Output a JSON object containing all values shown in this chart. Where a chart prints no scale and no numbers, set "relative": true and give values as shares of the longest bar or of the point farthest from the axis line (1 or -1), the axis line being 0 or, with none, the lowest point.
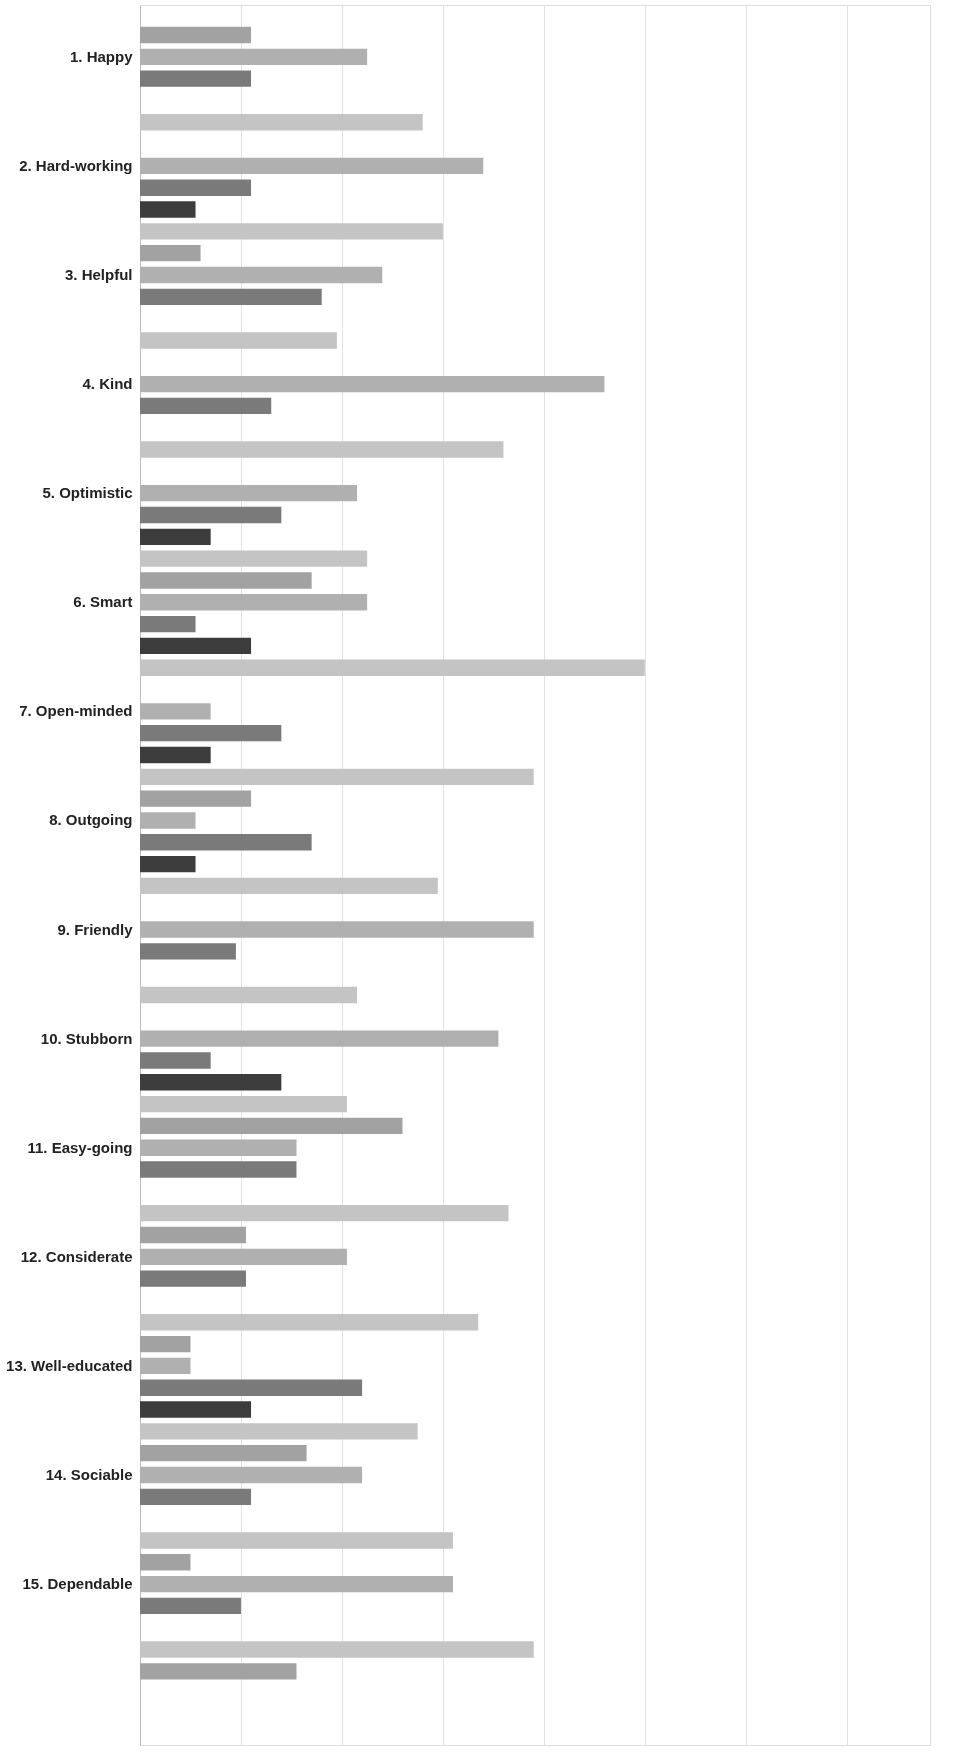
{
  "chart_data": {
    "type": "bar",
    "orientation": "horizontal",
    "relative": true,
    "grid": "x",
    "legend": false,
    "categories": [
      "1. Happy",
      "2. Hard-working",
      "3. Helpful",
      "4. Kind",
      "5. Optimistic",
      "6. Smart",
      "7. Open-minded",
      "8. Outgoing",
      "9. Friendly",
      "10. Stubborn",
      "11. Easy-going",
      "12. Considerate",
      "13. Well-educated",
      "14. Sociable",
      "15. Dependable",
      null
    ],
    "series": [
      {
        "color": "#c4c4c4",
        "values": [
          null,
          0.56,
          0.6,
          0.39,
          0.72,
          0.45,
          1.0,
          0.78,
          0.59,
          0.43,
          0.41,
          0.73,
          0.67,
          0.55,
          0.62,
          0.78
        ]
      },
      {
        "color": "#a2a2a2",
        "values": [
          0.22,
          null,
          0.12,
          null,
          null,
          0.34,
          null,
          0.22,
          null,
          null,
          0.52,
          0.21,
          0.1,
          0.33,
          0.1,
          0.31
        ]
      },
      {
        "color": "#b0b0b0",
        "values": [
          0.45,
          0.68,
          0.48,
          0.92,
          0.43,
          0.45,
          0.14,
          0.11,
          0.78,
          0.71,
          0.31,
          0.41,
          0.1,
          0.44,
          0.62,
          null
        ]
      },
      {
        "color": "#7a7a7a",
        "values": [
          0.22,
          0.22,
          0.36,
          0.26,
          0.28,
          0.11,
          0.28,
          0.34,
          0.19,
          0.14,
          0.31,
          0.21,
          0.44,
          0.22,
          0.2,
          null
        ]
      },
      {
        "color": "#3c3c3c",
        "values": [
          null,
          0.11,
          null,
          null,
          0.14,
          0.22,
          0.14,
          0.11,
          null,
          0.28,
          null,
          null,
          0.22,
          null,
          null,
          null
        ]
      }
    ]
  }
}
